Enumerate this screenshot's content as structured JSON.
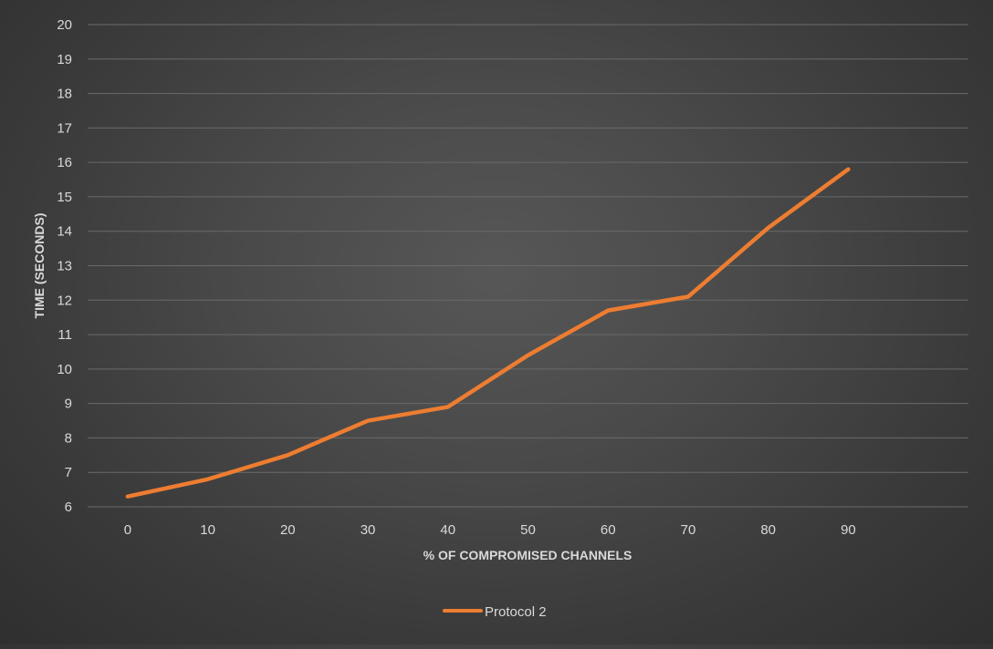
{
  "chart_data": {
    "type": "line",
    "title": "",
    "xlabel": "% OF COMPROMISED CHANNELS",
    "ylabel": "TIME (SECONDS)",
    "categories": [
      "0",
      "10",
      "20",
      "30",
      "40",
      "50",
      "60",
      "70",
      "80",
      "90"
    ],
    "x_extra_slots": 1,
    "ylim": [
      6,
      20
    ],
    "ytick_step": 1,
    "grid": true,
    "legend_position": "bottom",
    "series": [
      {
        "name": "Protocol 2",
        "color": "#ED7D31",
        "values": [
          6.3,
          6.8,
          7.5,
          8.5,
          8.9,
          10.4,
          11.7,
          12.1,
          14.1,
          15.8
        ]
      }
    ],
    "colors": {
      "text": "#d9d9d9",
      "gridline": "#6a6a6a"
    }
  }
}
